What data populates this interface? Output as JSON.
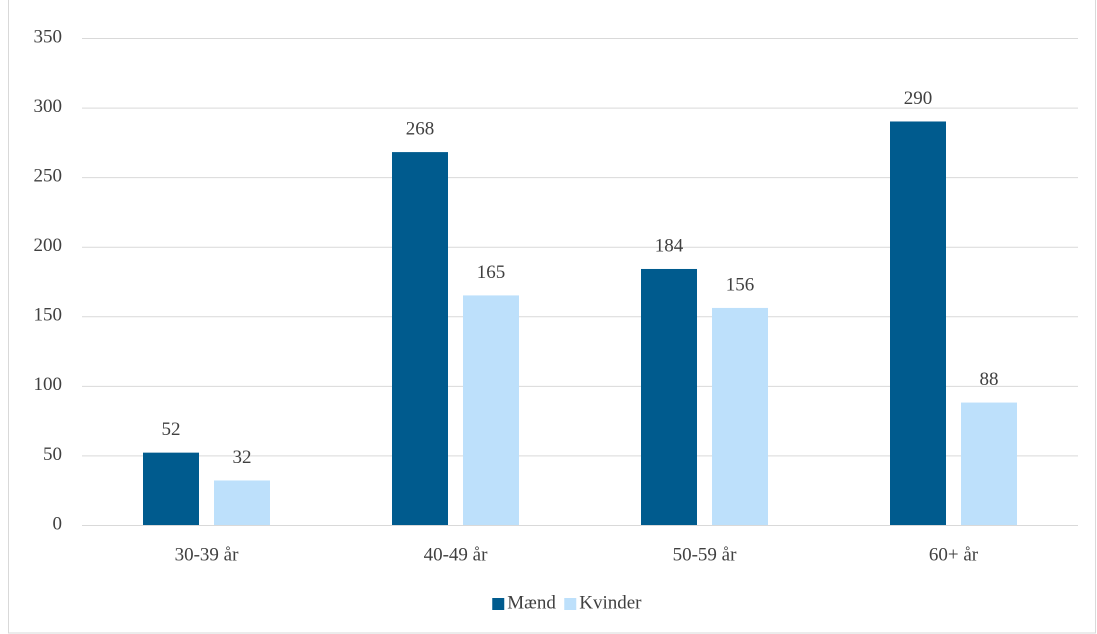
{
  "chart_data": {
    "type": "bar",
    "categories": [
      "30-39 år",
      "40-49 år",
      "50-59 år",
      "60+ år"
    ],
    "series": [
      {
        "name": "Mænd",
        "color": "#005b8e",
        "values": [
          52,
          268,
          184,
          290
        ]
      },
      {
        "name": "Kvinder",
        "color": "#bde0fb",
        "values": [
          32,
          165,
          156,
          88
        ]
      }
    ],
    "ylim": [
      0,
      350
    ],
    "yticks": [
      0,
      50,
      100,
      150,
      200,
      250,
      300,
      350
    ],
    "grid": true,
    "legend": "bottom"
  }
}
